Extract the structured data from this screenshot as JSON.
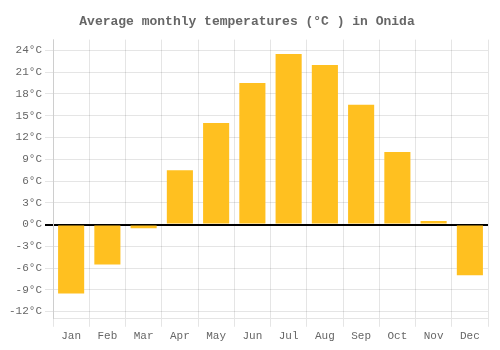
{
  "chart_data": {
    "type": "bar",
    "title": "Average monthly temperatures (°C ) in Onida",
    "categories": [
      "Jan",
      "Feb",
      "Mar",
      "Apr",
      "May",
      "Jun",
      "Jul",
      "Aug",
      "Sep",
      "Oct",
      "Nov",
      "Dec"
    ],
    "values": [
      -9.5,
      -5.5,
      -0.5,
      7.5,
      14.0,
      19.5,
      23.5,
      22.0,
      16.5,
      10.0,
      0.5,
      -7.0
    ],
    "color": "#FFC020",
    "ylim": [
      -13,
      25.5
    ],
    "yticks": [
      {
        "value": -12,
        "label": "-12°C"
      },
      {
        "value": -9,
        "label": "-9°C"
      },
      {
        "value": -6,
        "label": "-6°C"
      },
      {
        "value": -3,
        "label": "-3°C"
      },
      {
        "value": 0,
        "label": "0°C"
      },
      {
        "value": 3,
        "label": "3°C"
      },
      {
        "value": 6,
        "label": "6°C"
      },
      {
        "value": 9,
        "label": "9°C"
      },
      {
        "value": 12,
        "label": "12°C"
      },
      {
        "value": 15,
        "label": "15°C"
      },
      {
        "value": 18,
        "label": "18°C"
      },
      {
        "value": 21,
        "label": "21°C"
      },
      {
        "value": 24,
        "label": "24°C"
      }
    ],
    "grid": true
  }
}
